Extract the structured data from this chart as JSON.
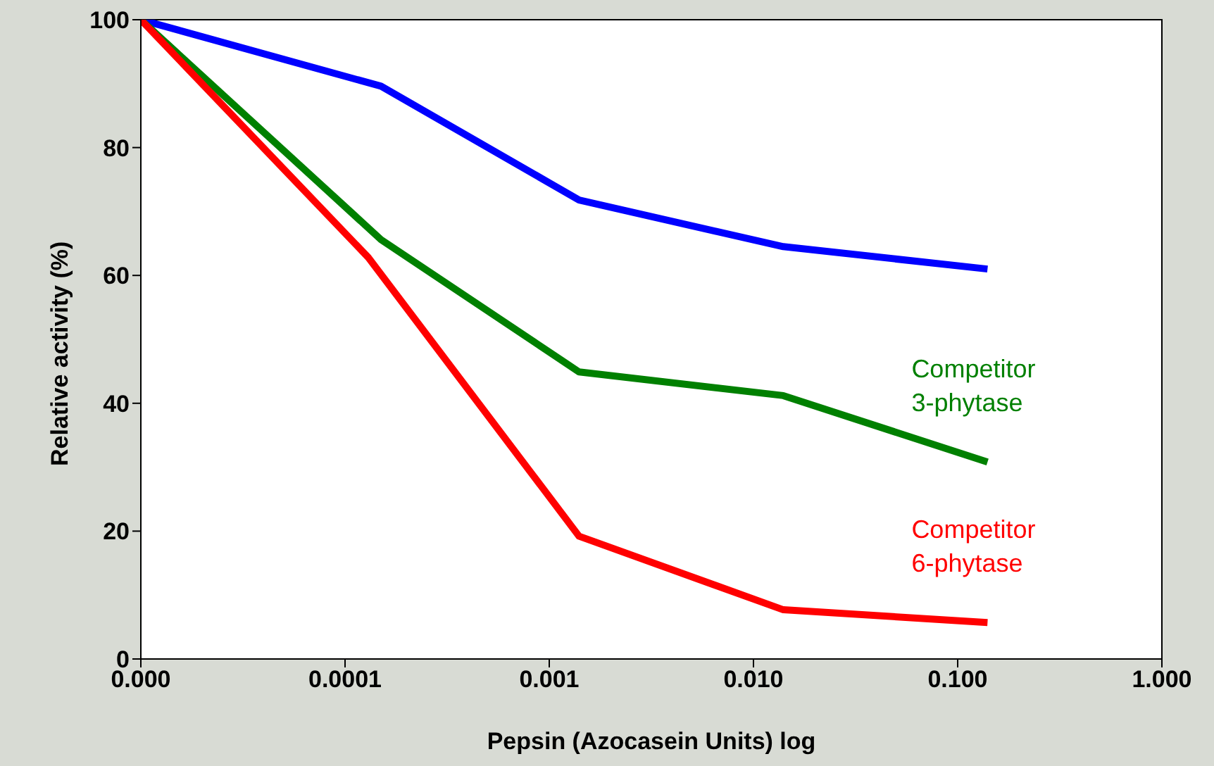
{
  "chart_data": {
    "type": "line",
    "xlabel": "Pepsin (Azocasein Units) log",
    "ylabel": "Relative activity (%)",
    "log": "x",
    "xlim": [
      1e-05,
      1
    ],
    "xticks": [
      {
        "value": 1e-05,
        "label": "0.000"
      },
      0.0001,
      0.001,
      {
        "value": 0.01,
        "label": "0.010"
      },
      {
        "value": 0.1,
        "label": "0.100"
      },
      {
        "value": 1,
        "label": "1.000"
      }
    ],
    "ylim": [
      0,
      100
    ],
    "yticks": [
      0,
      20,
      40,
      60,
      80,
      100
    ],
    "grid": false,
    "legend": false,
    "marker": "none",
    "line_style": "solid",
    "series": [
      {
        "color": "#0000ff",
        "x": [
          1e-05,
          0.00015,
          0.0014,
          0.014,
          0.14
        ],
        "values": [
          100,
          89.6,
          71.8,
          64.5,
          61
        ]
      },
      {
        "name": "Competitor 3-phytase",
        "color": "#008000",
        "x": [
          1e-05,
          0.00015,
          0.0014,
          0.014,
          0.14
        ],
        "values": [
          100,
          65.6,
          44.9,
          41.2,
          30.8
        ]
      },
      {
        "name": "Competitor 6-phytase",
        "color": "#ff0000",
        "x": [
          1e-05,
          0.00013,
          0.0014,
          0.014,
          0.14
        ],
        "values": [
          100,
          62.8,
          19.2,
          7.7,
          5.7
        ]
      }
    ]
  }
}
